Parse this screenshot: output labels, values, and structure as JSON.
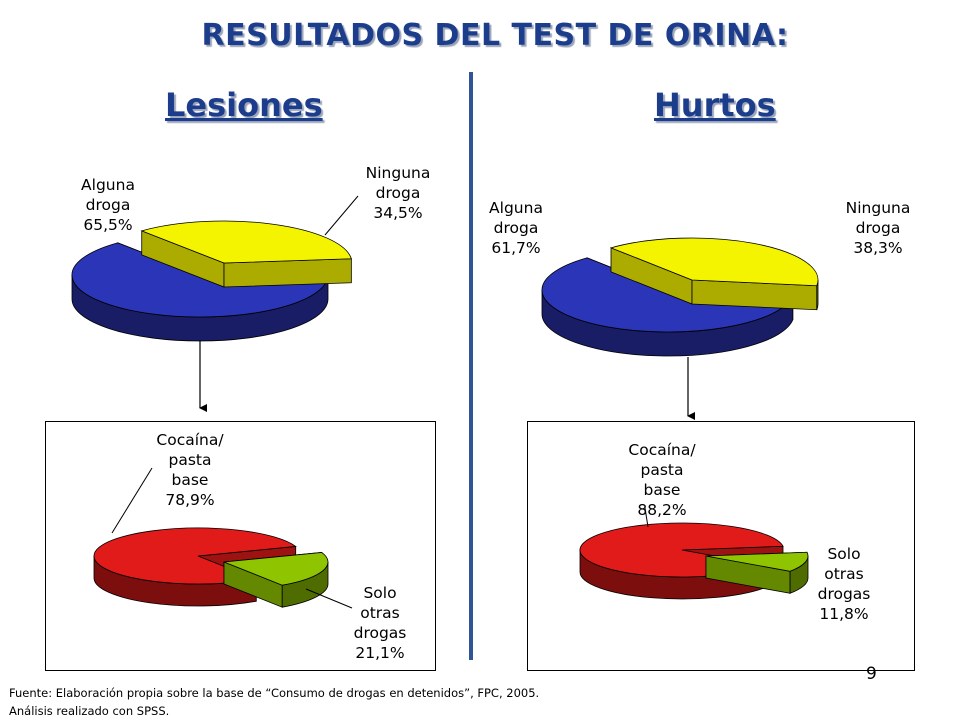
{
  "title": "RESULTADOS DEL TEST DE ORINA:",
  "page_number": "9",
  "footnote": {
    "line1": "Fuente: Elaboración propia sobre la base de “Consumo de drogas en detenidos”, FPC, 2005.",
    "line2": "Análisis realizado con SPSS."
  },
  "colors": {
    "blue": "#2b35b8",
    "yellow": "#f4f400",
    "red": "#e11a1a",
    "green": "#8fc400",
    "title": "#1c3c8c",
    "divider": "#2f5597"
  },
  "chart_data": [
    {
      "type": "pie",
      "title": "Lesiones",
      "slices": [
        {
          "label_lines": [
            "Alguna",
            "droga",
            "65,5%"
          ],
          "value": 65.5
        },
        {
          "label_lines": [
            "Ninguna",
            "droga",
            "34,5%"
          ],
          "value": 34.5
        }
      ]
    },
    {
      "type": "pie",
      "title": "Hurtos",
      "slices": [
        {
          "label_lines": [
            "Alguna",
            "droga",
            "61,7%"
          ],
          "value": 61.7
        },
        {
          "label_lines": [
            "Ninguna",
            "droga",
            "38,3%"
          ],
          "value": 38.3
        }
      ]
    },
    {
      "type": "pie",
      "title": "",
      "slices": [
        {
          "label_lines": [
            "Cocaína/",
            "pasta",
            "base",
            "78,9%"
          ],
          "value": 78.9
        },
        {
          "label_lines": [
            "Solo",
            "otras",
            "drogas",
            "21,1%"
          ],
          "value": 21.1
        }
      ]
    },
    {
      "type": "pie",
      "title": "",
      "slices": [
        {
          "label_lines": [
            "Cocaína/",
            "pasta",
            "base",
            "88,2%"
          ],
          "value": 88.2
        },
        {
          "label_lines": [
            "Solo",
            "otras",
            "drogas",
            "11,8%"
          ],
          "value": 11.8
        }
      ]
    }
  ]
}
